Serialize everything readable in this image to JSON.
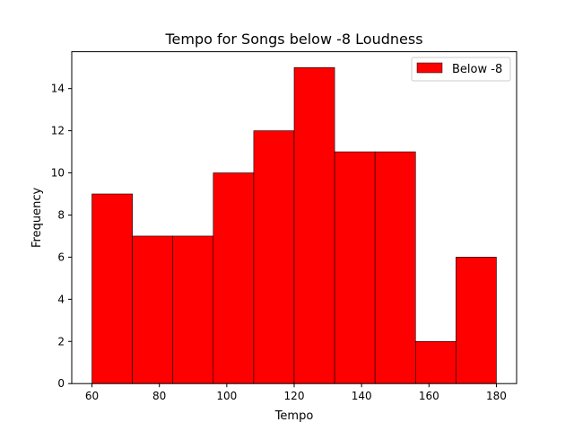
{
  "chart_data": {
    "type": "bar",
    "title": "Tempo for Songs below -8 Loudness",
    "xlabel": "Tempo",
    "ylabel": "Frequency",
    "bin_edges": [
      60,
      72,
      84,
      96,
      108,
      120,
      132,
      144,
      156,
      168,
      180
    ],
    "series": [
      {
        "name": "Below -8",
        "values": [
          9,
          7,
          7,
          10,
          12,
          15,
          11,
          11,
          2,
          6
        ],
        "color": "#ff0000"
      }
    ],
    "xlim": [
      54,
      186
    ],
    "ylim": [
      0,
      15.75
    ],
    "xticks": [
      60,
      80,
      100,
      120,
      140,
      160,
      180
    ],
    "yticks": [
      0,
      2,
      4,
      6,
      8,
      10,
      12,
      14
    ],
    "grid": false,
    "legend_position": "top-right",
    "edge_color": "#000000"
  }
}
